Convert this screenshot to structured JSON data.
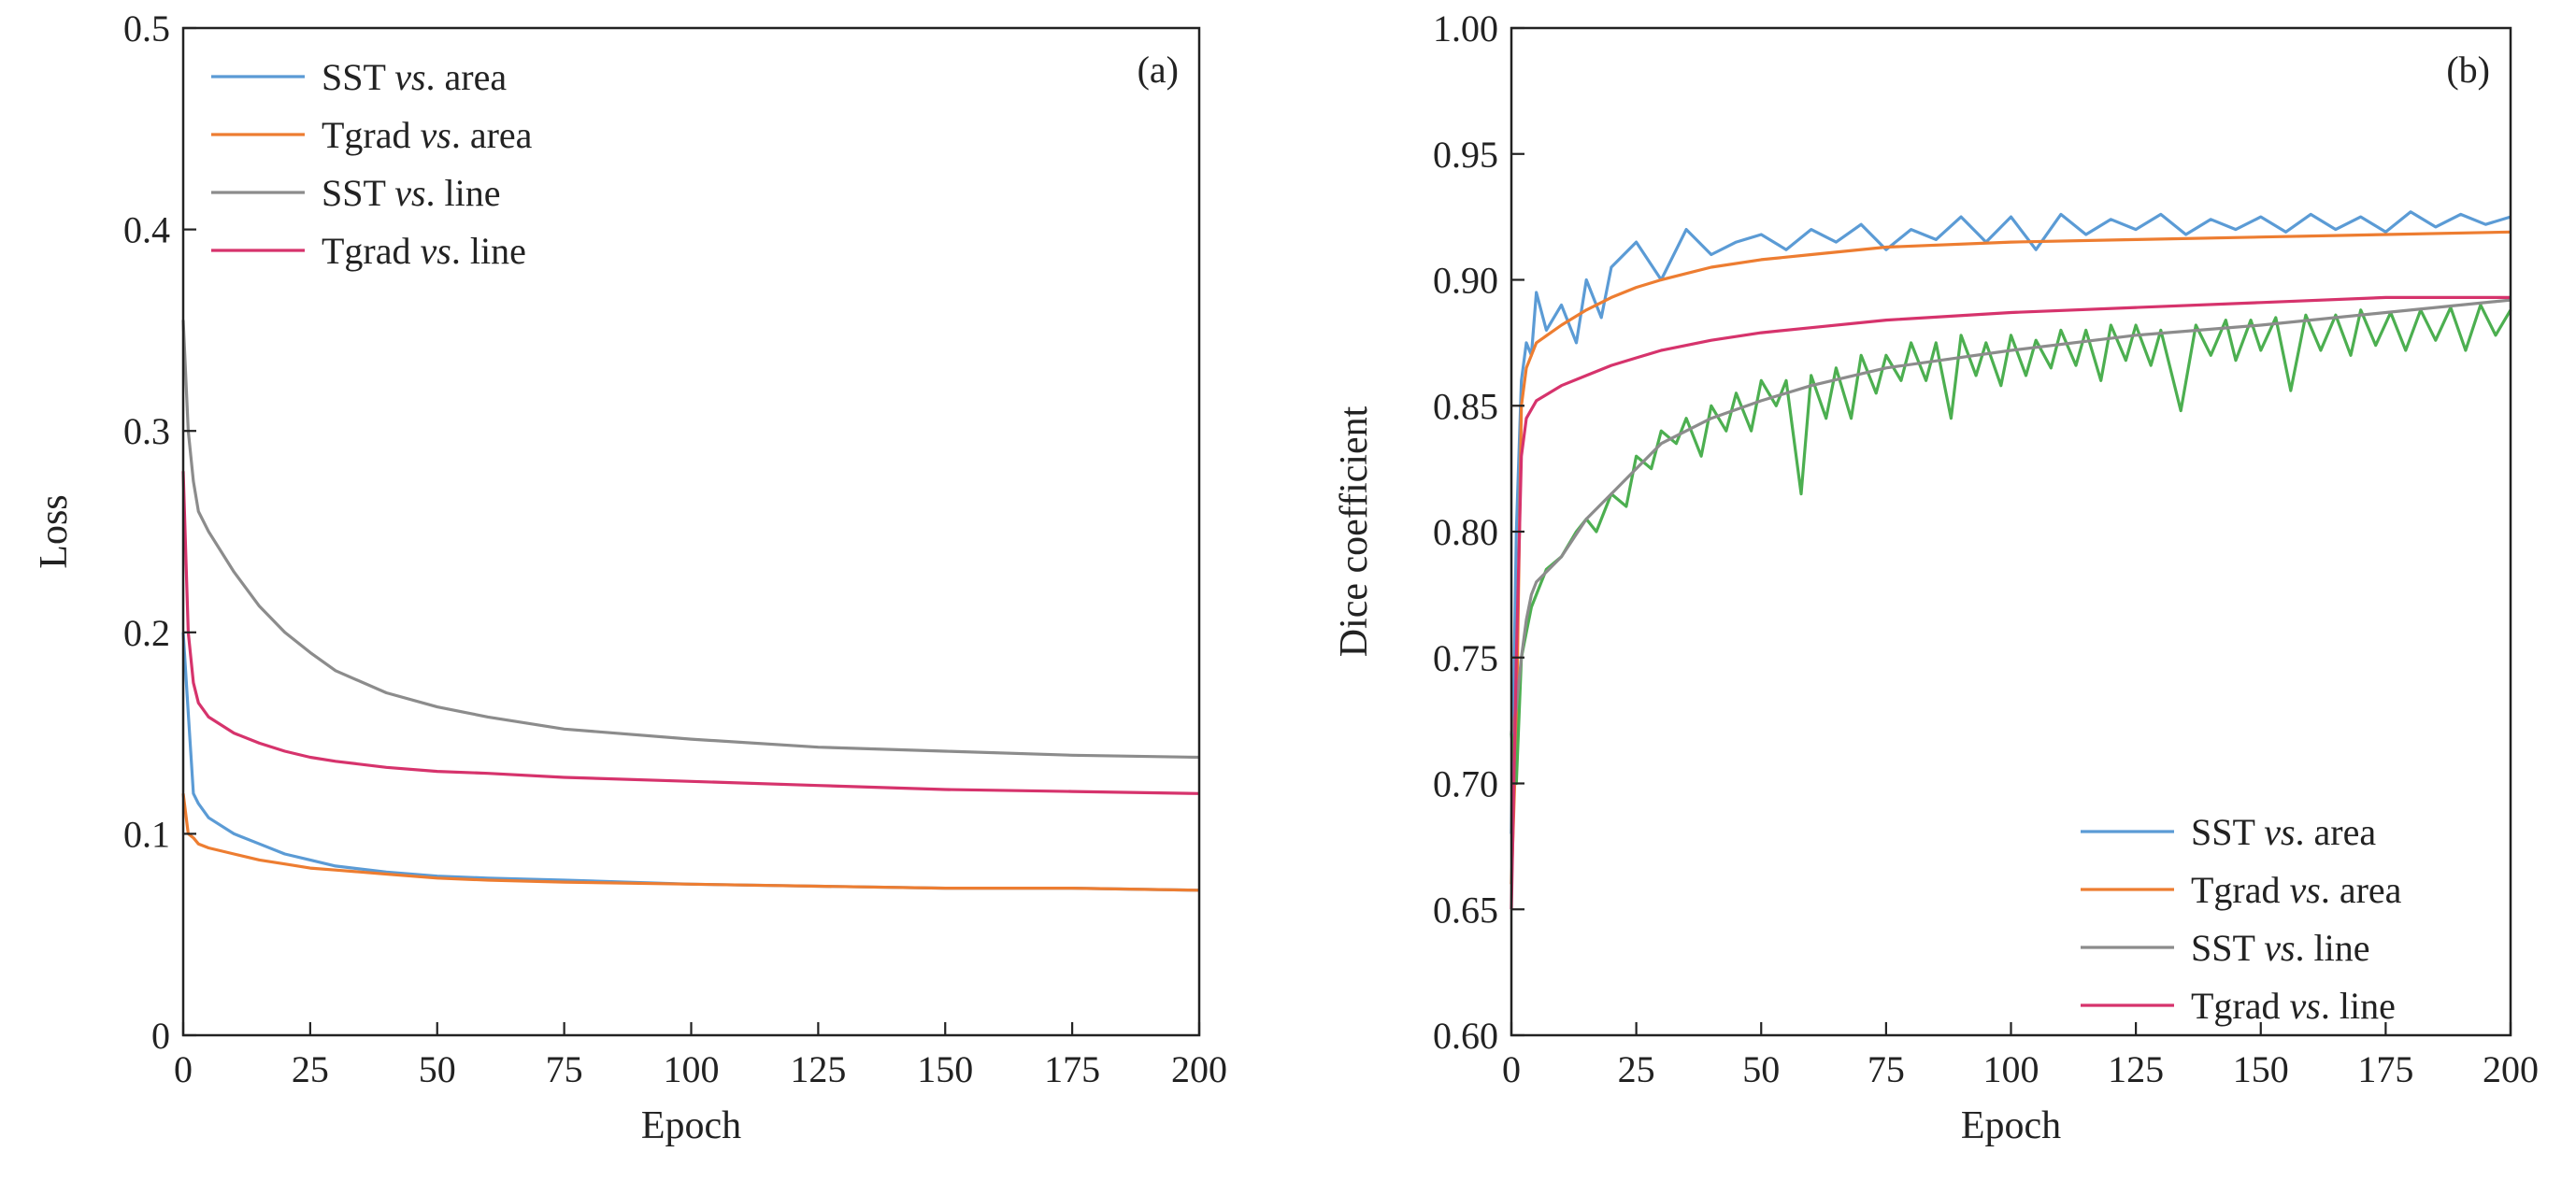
{
  "chart_data": [
    {
      "type": "line",
      "panel_label": "(a)",
      "xlabel": "Epoch",
      "ylabel": "Loss",
      "xlim": [
        0,
        200
      ],
      "ylim": [
        0,
        0.5
      ],
      "xticks": [
        0,
        25,
        50,
        75,
        100,
        125,
        150,
        175,
        200
      ],
      "yticks": [
        0,
        0.1,
        0.2,
        0.3,
        0.4,
        0.5
      ],
      "ytick_labels": [
        "0",
        "0.1",
        "0.2",
        "0.3",
        "0.4",
        "0.5"
      ],
      "grid": false,
      "legend_position": "top-left",
      "series": [
        {
          "name": "SST vs. area",
          "color": "#5b9bd5",
          "x": [
            0,
            1,
            2,
            3,
            5,
            10,
            15,
            20,
            25,
            30,
            40,
            50,
            60,
            75,
            100,
            125,
            150,
            175,
            200
          ],
          "values": [
            0.2,
            0.16,
            0.12,
            0.115,
            0.108,
            0.1,
            0.095,
            0.09,
            0.087,
            0.084,
            0.081,
            0.079,
            0.078,
            0.077,
            0.075,
            0.074,
            0.073,
            0.073,
            0.072
          ]
        },
        {
          "name": "Tgrad vs. area",
          "color": "#ed7d31",
          "x": [
            0,
            1,
            2,
            3,
            5,
            10,
            15,
            20,
            25,
            30,
            40,
            50,
            60,
            75,
            100,
            125,
            150,
            175,
            200
          ],
          "values": [
            0.12,
            0.1,
            0.098,
            0.095,
            0.093,
            0.09,
            0.087,
            0.085,
            0.083,
            0.082,
            0.08,
            0.078,
            0.077,
            0.076,
            0.075,
            0.074,
            0.073,
            0.073,
            0.072
          ]
        },
        {
          "name": "SST vs. line",
          "color": "#8c8c8c",
          "x": [
            0,
            1,
            2,
            3,
            5,
            10,
            15,
            20,
            25,
            30,
            40,
            50,
            60,
            75,
            100,
            125,
            150,
            175,
            200
          ],
          "values": [
            0.355,
            0.3,
            0.275,
            0.26,
            0.25,
            0.23,
            0.213,
            0.2,
            0.19,
            0.181,
            0.17,
            0.163,
            0.158,
            0.152,
            0.147,
            0.143,
            0.141,
            0.139,
            0.138
          ]
        },
        {
          "name": "Tgrad vs. line",
          "color": "#d6336c",
          "x": [
            0,
            1,
            2,
            3,
            5,
            10,
            15,
            20,
            25,
            30,
            40,
            50,
            60,
            75,
            100,
            125,
            150,
            175,
            200
          ],
          "values": [
            0.28,
            0.2,
            0.175,
            0.165,
            0.158,
            0.15,
            0.145,
            0.141,
            0.138,
            0.136,
            0.133,
            0.131,
            0.13,
            0.128,
            0.126,
            0.124,
            0.122,
            0.121,
            0.12
          ]
        }
      ]
    },
    {
      "type": "line",
      "panel_label": "(b)",
      "xlabel": "Epoch",
      "ylabel": "Dice coefficient",
      "xlim": [
        0,
        200
      ],
      "ylim": [
        0.6,
        1.0
      ],
      "xticks": [
        0,
        25,
        50,
        75,
        100,
        125,
        150,
        175,
        200
      ],
      "yticks": [
        0.6,
        0.65,
        0.7,
        0.75,
        0.8,
        0.85,
        0.9,
        0.95,
        1.0
      ],
      "ytick_labels": [
        "0.60",
        "0.65",
        "0.70",
        "0.75",
        "0.80",
        "0.85",
        "0.90",
        "0.95",
        "1.00"
      ],
      "grid": false,
      "legend_position": "bottom-right",
      "series": [
        {
          "name": "SST vs. area",
          "color": "#5b9bd5",
          "x": [
            0,
            1,
            2,
            3,
            4,
            5,
            7,
            10,
            13,
            15,
            18,
            20,
            25,
            30,
            35,
            40,
            45,
            50,
            55,
            60,
            65,
            70,
            75,
            80,
            85,
            90,
            95,
            100,
            105,
            110,
            115,
            120,
            125,
            130,
            135,
            140,
            145,
            150,
            155,
            160,
            165,
            170,
            175,
            180,
            185,
            190,
            195,
            200
          ],
          "values": [
            0.68,
            0.8,
            0.86,
            0.875,
            0.87,
            0.895,
            0.88,
            0.89,
            0.875,
            0.9,
            0.885,
            0.905,
            0.915,
            0.9,
            0.92,
            0.91,
            0.915,
            0.918,
            0.912,
            0.92,
            0.915,
            0.922,
            0.912,
            0.92,
            0.916,
            0.925,
            0.915,
            0.925,
            0.912,
            0.926,
            0.918,
            0.924,
            0.92,
            0.926,
            0.918,
            0.924,
            0.92,
            0.925,
            0.919,
            0.926,
            0.92,
            0.925,
            0.919,
            0.927,
            0.921,
            0.926,
            0.922,
            0.925
          ]
        },
        {
          "name": "Tgrad vs. area",
          "color": "#ed7d31",
          "x": [
            0,
            1,
            2,
            3,
            5,
            10,
            15,
            20,
            25,
            30,
            40,
            50,
            60,
            75,
            100,
            125,
            150,
            175,
            200
          ],
          "values": [
            0.66,
            0.72,
            0.85,
            0.865,
            0.875,
            0.882,
            0.888,
            0.893,
            0.897,
            0.9,
            0.905,
            0.908,
            0.91,
            0.913,
            0.915,
            0.916,
            0.917,
            0.918,
            0.919
          ]
        },
        {
          "name": "SST vs. line",
          "color": "#4caf50",
          "x": [
            0,
            1,
            2,
            3,
            4,
            5,
            7,
            10,
            13,
            15,
            17,
            20,
            23,
            25,
            28,
            30,
            33,
            35,
            38,
            40,
            43,
            45,
            48,
            50,
            53,
            55,
            58,
            60,
            63,
            65,
            68,
            70,
            73,
            75,
            78,
            80,
            83,
            85,
            88,
            90,
            93,
            95,
            98,
            100,
            103,
            105,
            108,
            110,
            113,
            115,
            118,
            120,
            123,
            125,
            128,
            130,
            134,
            137,
            140,
            143,
            145,
            148,
            150,
            153,
            156,
            159,
            162,
            165,
            168,
            170,
            173,
            176,
            179,
            182,
            185,
            188,
            191,
            194,
            197,
            200
          ],
          "values": [
            0.72,
            0.7,
            0.75,
            0.76,
            0.77,
            0.775,
            0.785,
            0.79,
            0.8,
            0.805,
            0.8,
            0.815,
            0.81,
            0.83,
            0.825,
            0.84,
            0.835,
            0.845,
            0.83,
            0.85,
            0.84,
            0.855,
            0.84,
            0.86,
            0.85,
            0.86,
            0.815,
            0.862,
            0.845,
            0.865,
            0.845,
            0.87,
            0.855,
            0.87,
            0.86,
            0.875,
            0.86,
            0.875,
            0.845,
            0.878,
            0.862,
            0.875,
            0.858,
            0.878,
            0.862,
            0.876,
            0.865,
            0.88,
            0.866,
            0.88,
            0.86,
            0.882,
            0.868,
            0.882,
            0.866,
            0.88,
            0.848,
            0.882,
            0.87,
            0.884,
            0.868,
            0.884,
            0.872,
            0.885,
            0.856,
            0.886,
            0.872,
            0.886,
            0.87,
            0.888,
            0.874,
            0.887,
            0.872,
            0.888,
            0.876,
            0.889,
            0.872,
            0.89,
            0.878,
            0.888
          ]
        },
        {
          "name": "SST vs. line",
          "color": "#8c8c8c",
          "x": [
            0,
            1,
            2,
            3,
            4,
            5,
            10,
            15,
            20,
            25,
            30,
            40,
            50,
            60,
            75,
            100,
            125,
            150,
            175,
            200
          ],
          "values": [
            0.72,
            0.73,
            0.75,
            0.765,
            0.775,
            0.78,
            0.79,
            0.805,
            0.815,
            0.825,
            0.835,
            0.845,
            0.852,
            0.858,
            0.865,
            0.872,
            0.878,
            0.882,
            0.887,
            0.892
          ]
        },
        {
          "name": "Tgrad vs. line",
          "color": "#d6336c",
          "x": [
            0,
            1,
            2,
            3,
            5,
            10,
            15,
            20,
            25,
            30,
            40,
            50,
            60,
            75,
            100,
            125,
            150,
            175,
            200
          ],
          "values": [
            0.65,
            0.75,
            0.83,
            0.845,
            0.852,
            0.858,
            0.862,
            0.866,
            0.869,
            0.872,
            0.876,
            0.879,
            0.881,
            0.884,
            0.887,
            0.889,
            0.891,
            0.893,
            0.893
          ]
        }
      ]
    }
  ],
  "legend_items": [
    {
      "a": "SST ",
      "vs": "vs",
      "b": ". area",
      "color": "#5b9bd5"
    },
    {
      "a": "Tgrad ",
      "vs": "vs",
      "b": ". area",
      "color": "#ed7d31"
    },
    {
      "a": "SST ",
      "vs": "vs",
      "b": ". line",
      "color": "#8c8c8c"
    },
    {
      "a": "Tgrad ",
      "vs": "vs",
      "b": ". line",
      "color": "#d6336c"
    }
  ]
}
